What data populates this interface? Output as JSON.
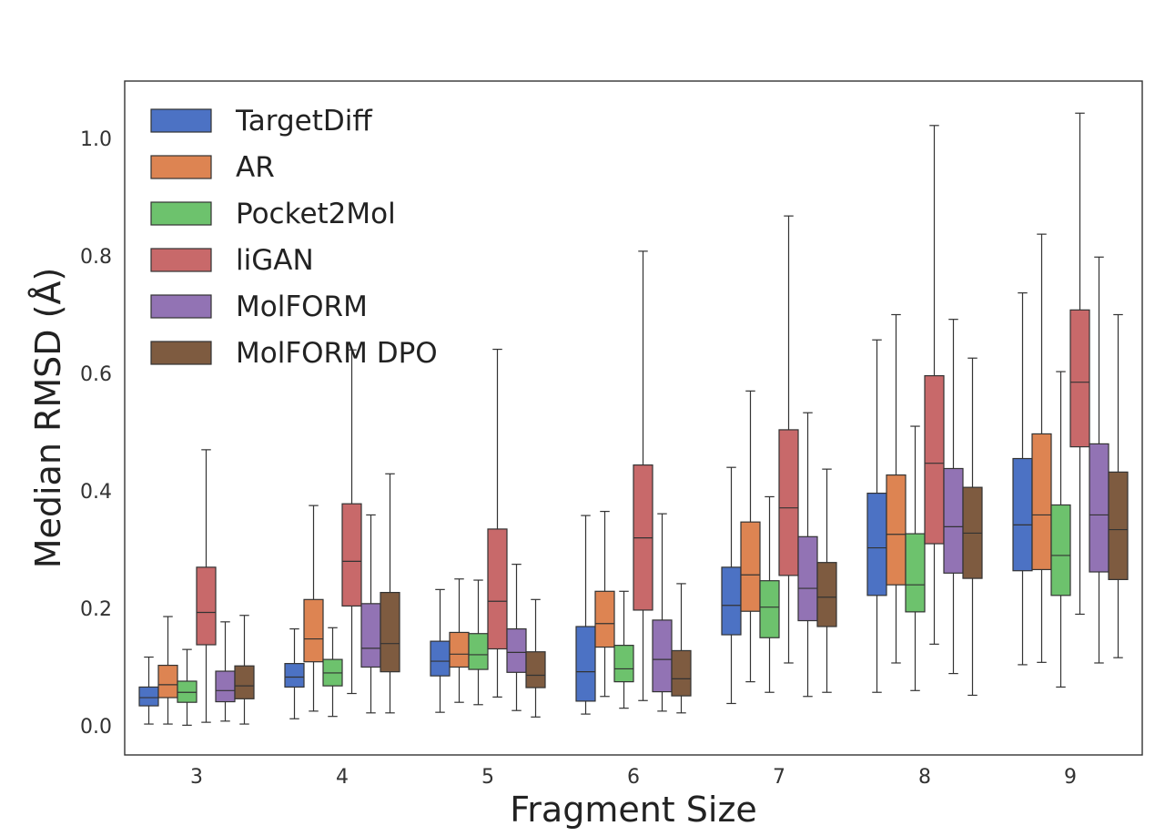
{
  "chart_data": {
    "type": "boxplot",
    "xlabel": "Fragment Size",
    "ylabel": "Median RMSD (Å)",
    "categories": [
      "3",
      "4",
      "5",
      "6",
      "7",
      "8",
      "9"
    ],
    "y_ticks": [
      "0.0",
      "0.2",
      "0.4",
      "0.6",
      "0.8",
      "1.0"
    ],
    "ylim": [
      -0.05,
      1.1
    ],
    "grid": false,
    "legend_position": "top-left",
    "series": [
      {
        "name": "TargetDiff",
        "color": "#4c72c4",
        "boxes": [
          {
            "whisker_low": 0.003,
            "q1": 0.034,
            "median": 0.048,
            "q3": 0.066,
            "whisker_high": 0.117
          },
          {
            "whisker_low": 0.012,
            "q1": 0.066,
            "median": 0.083,
            "q3": 0.106,
            "whisker_high": 0.165
          },
          {
            "whisker_low": 0.023,
            "q1": 0.085,
            "median": 0.11,
            "q3": 0.144,
            "whisker_high": 0.232
          },
          {
            "whisker_low": 0.02,
            "q1": 0.042,
            "median": 0.092,
            "q3": 0.169,
            "whisker_high": 0.358
          },
          {
            "whisker_low": 0.038,
            "q1": 0.155,
            "median": 0.205,
            "q3": 0.27,
            "whisker_high": 0.44
          },
          {
            "whisker_low": 0.057,
            "q1": 0.222,
            "median": 0.303,
            "q3": 0.396,
            "whisker_high": 0.657
          },
          {
            "whisker_low": 0.104,
            "q1": 0.264,
            "median": 0.342,
            "q3": 0.455,
            "whisker_high": 0.737
          }
        ]
      },
      {
        "name": "AR",
        "color": "#dd8452",
        "boxes": [
          {
            "whisker_low": 0.003,
            "q1": 0.048,
            "median": 0.07,
            "q3": 0.103,
            "whisker_high": 0.186
          },
          {
            "whisker_low": 0.025,
            "q1": 0.109,
            "median": 0.148,
            "q3": 0.215,
            "whisker_high": 0.375
          },
          {
            "whisker_low": 0.04,
            "q1": 0.1,
            "median": 0.122,
            "q3": 0.159,
            "whisker_high": 0.25
          },
          {
            "whisker_low": 0.05,
            "q1": 0.134,
            "median": 0.174,
            "q3": 0.229,
            "whisker_high": 0.365
          },
          {
            "whisker_low": 0.075,
            "q1": 0.195,
            "median": 0.257,
            "q3": 0.347,
            "whisker_high": 0.57
          },
          {
            "whisker_low": 0.107,
            "q1": 0.24,
            "median": 0.326,
            "q3": 0.427,
            "whisker_high": 0.7
          },
          {
            "whisker_low": 0.108,
            "q1": 0.266,
            "median": 0.359,
            "q3": 0.497,
            "whisker_high": 0.837
          }
        ]
      },
      {
        "name": "Pocket2Mol",
        "color": "#6dc26d",
        "boxes": [
          {
            "whisker_low": 0.001,
            "q1": 0.04,
            "median": 0.057,
            "q3": 0.076,
            "whisker_high": 0.13
          },
          {
            "whisker_low": 0.016,
            "q1": 0.068,
            "median": 0.09,
            "q3": 0.113,
            "whisker_high": 0.167
          },
          {
            "whisker_low": 0.036,
            "q1": 0.096,
            "median": 0.121,
            "q3": 0.157,
            "whisker_high": 0.248
          },
          {
            "whisker_low": 0.03,
            "q1": 0.075,
            "median": 0.097,
            "q3": 0.137,
            "whisker_high": 0.229
          },
          {
            "whisker_low": 0.057,
            "q1": 0.15,
            "median": 0.202,
            "q3": 0.247,
            "whisker_high": 0.39
          },
          {
            "whisker_low": 0.06,
            "q1": 0.194,
            "median": 0.24,
            "q3": 0.327,
            "whisker_high": 0.51
          },
          {
            "whisker_low": 0.066,
            "q1": 0.222,
            "median": 0.29,
            "q3": 0.376,
            "whisker_high": 0.603
          }
        ]
      },
      {
        "name": "liGAN",
        "color": "#c8696a",
        "boxes": [
          {
            "whisker_low": 0.006,
            "q1": 0.138,
            "median": 0.193,
            "q3": 0.27,
            "whisker_high": 0.47
          },
          {
            "whisker_low": 0.055,
            "q1": 0.204,
            "median": 0.28,
            "q3": 0.378,
            "whisker_high": 0.64
          },
          {
            "whisker_low": 0.049,
            "q1": 0.131,
            "median": 0.212,
            "q3": 0.335,
            "whisker_high": 0.641
          },
          {
            "whisker_low": 0.043,
            "q1": 0.197,
            "median": 0.32,
            "q3": 0.444,
            "whisker_high": 0.808
          },
          {
            "whisker_low": 0.107,
            "q1": 0.256,
            "median": 0.371,
            "q3": 0.504,
            "whisker_high": 0.868
          },
          {
            "whisker_low": 0.139,
            "q1": 0.31,
            "median": 0.447,
            "q3": 0.596,
            "whisker_high": 1.022
          },
          {
            "whisker_low": 0.19,
            "q1": 0.475,
            "median": 0.585,
            "q3": 0.708,
            "whisker_high": 1.043
          }
        ]
      },
      {
        "name": "MolFORM",
        "color": "#9273b4",
        "boxes": [
          {
            "whisker_low": 0.008,
            "q1": 0.041,
            "median": 0.06,
            "q3": 0.093,
            "whisker_high": 0.177
          },
          {
            "whisker_low": 0.022,
            "q1": 0.1,
            "median": 0.132,
            "q3": 0.208,
            "whisker_high": 0.359
          },
          {
            "whisker_low": 0.026,
            "q1": 0.091,
            "median": 0.125,
            "q3": 0.165,
            "whisker_high": 0.275
          },
          {
            "whisker_low": 0.025,
            "q1": 0.058,
            "median": 0.113,
            "q3": 0.18,
            "whisker_high": 0.361
          },
          {
            "whisker_low": 0.05,
            "q1": 0.179,
            "median": 0.234,
            "q3": 0.322,
            "whisker_high": 0.533
          },
          {
            "whisker_low": 0.089,
            "q1": 0.26,
            "median": 0.339,
            "q3": 0.438,
            "whisker_high": 0.692
          },
          {
            "whisker_low": 0.107,
            "q1": 0.262,
            "median": 0.359,
            "q3": 0.48,
            "whisker_high": 0.798
          }
        ]
      },
      {
        "name": "MolFORM DPO",
        "color": "#7e5b40",
        "boxes": [
          {
            "whisker_low": 0.003,
            "q1": 0.046,
            "median": 0.068,
            "q3": 0.102,
            "whisker_high": 0.188
          },
          {
            "whisker_low": 0.022,
            "q1": 0.092,
            "median": 0.14,
            "q3": 0.227,
            "whisker_high": 0.429
          },
          {
            "whisker_low": 0.015,
            "q1": 0.065,
            "median": 0.086,
            "q3": 0.126,
            "whisker_high": 0.215
          },
          {
            "whisker_low": 0.022,
            "q1": 0.051,
            "median": 0.08,
            "q3": 0.128,
            "whisker_high": 0.242
          },
          {
            "whisker_low": 0.057,
            "q1": 0.169,
            "median": 0.219,
            "q3": 0.278,
            "whisker_high": 0.437
          },
          {
            "whisker_low": 0.052,
            "q1": 0.251,
            "median": 0.328,
            "q3": 0.406,
            "whisker_high": 0.626
          },
          {
            "whisker_low": 0.116,
            "q1": 0.249,
            "median": 0.334,
            "q3": 0.432,
            "whisker_high": 0.7
          }
        ]
      }
    ]
  }
}
